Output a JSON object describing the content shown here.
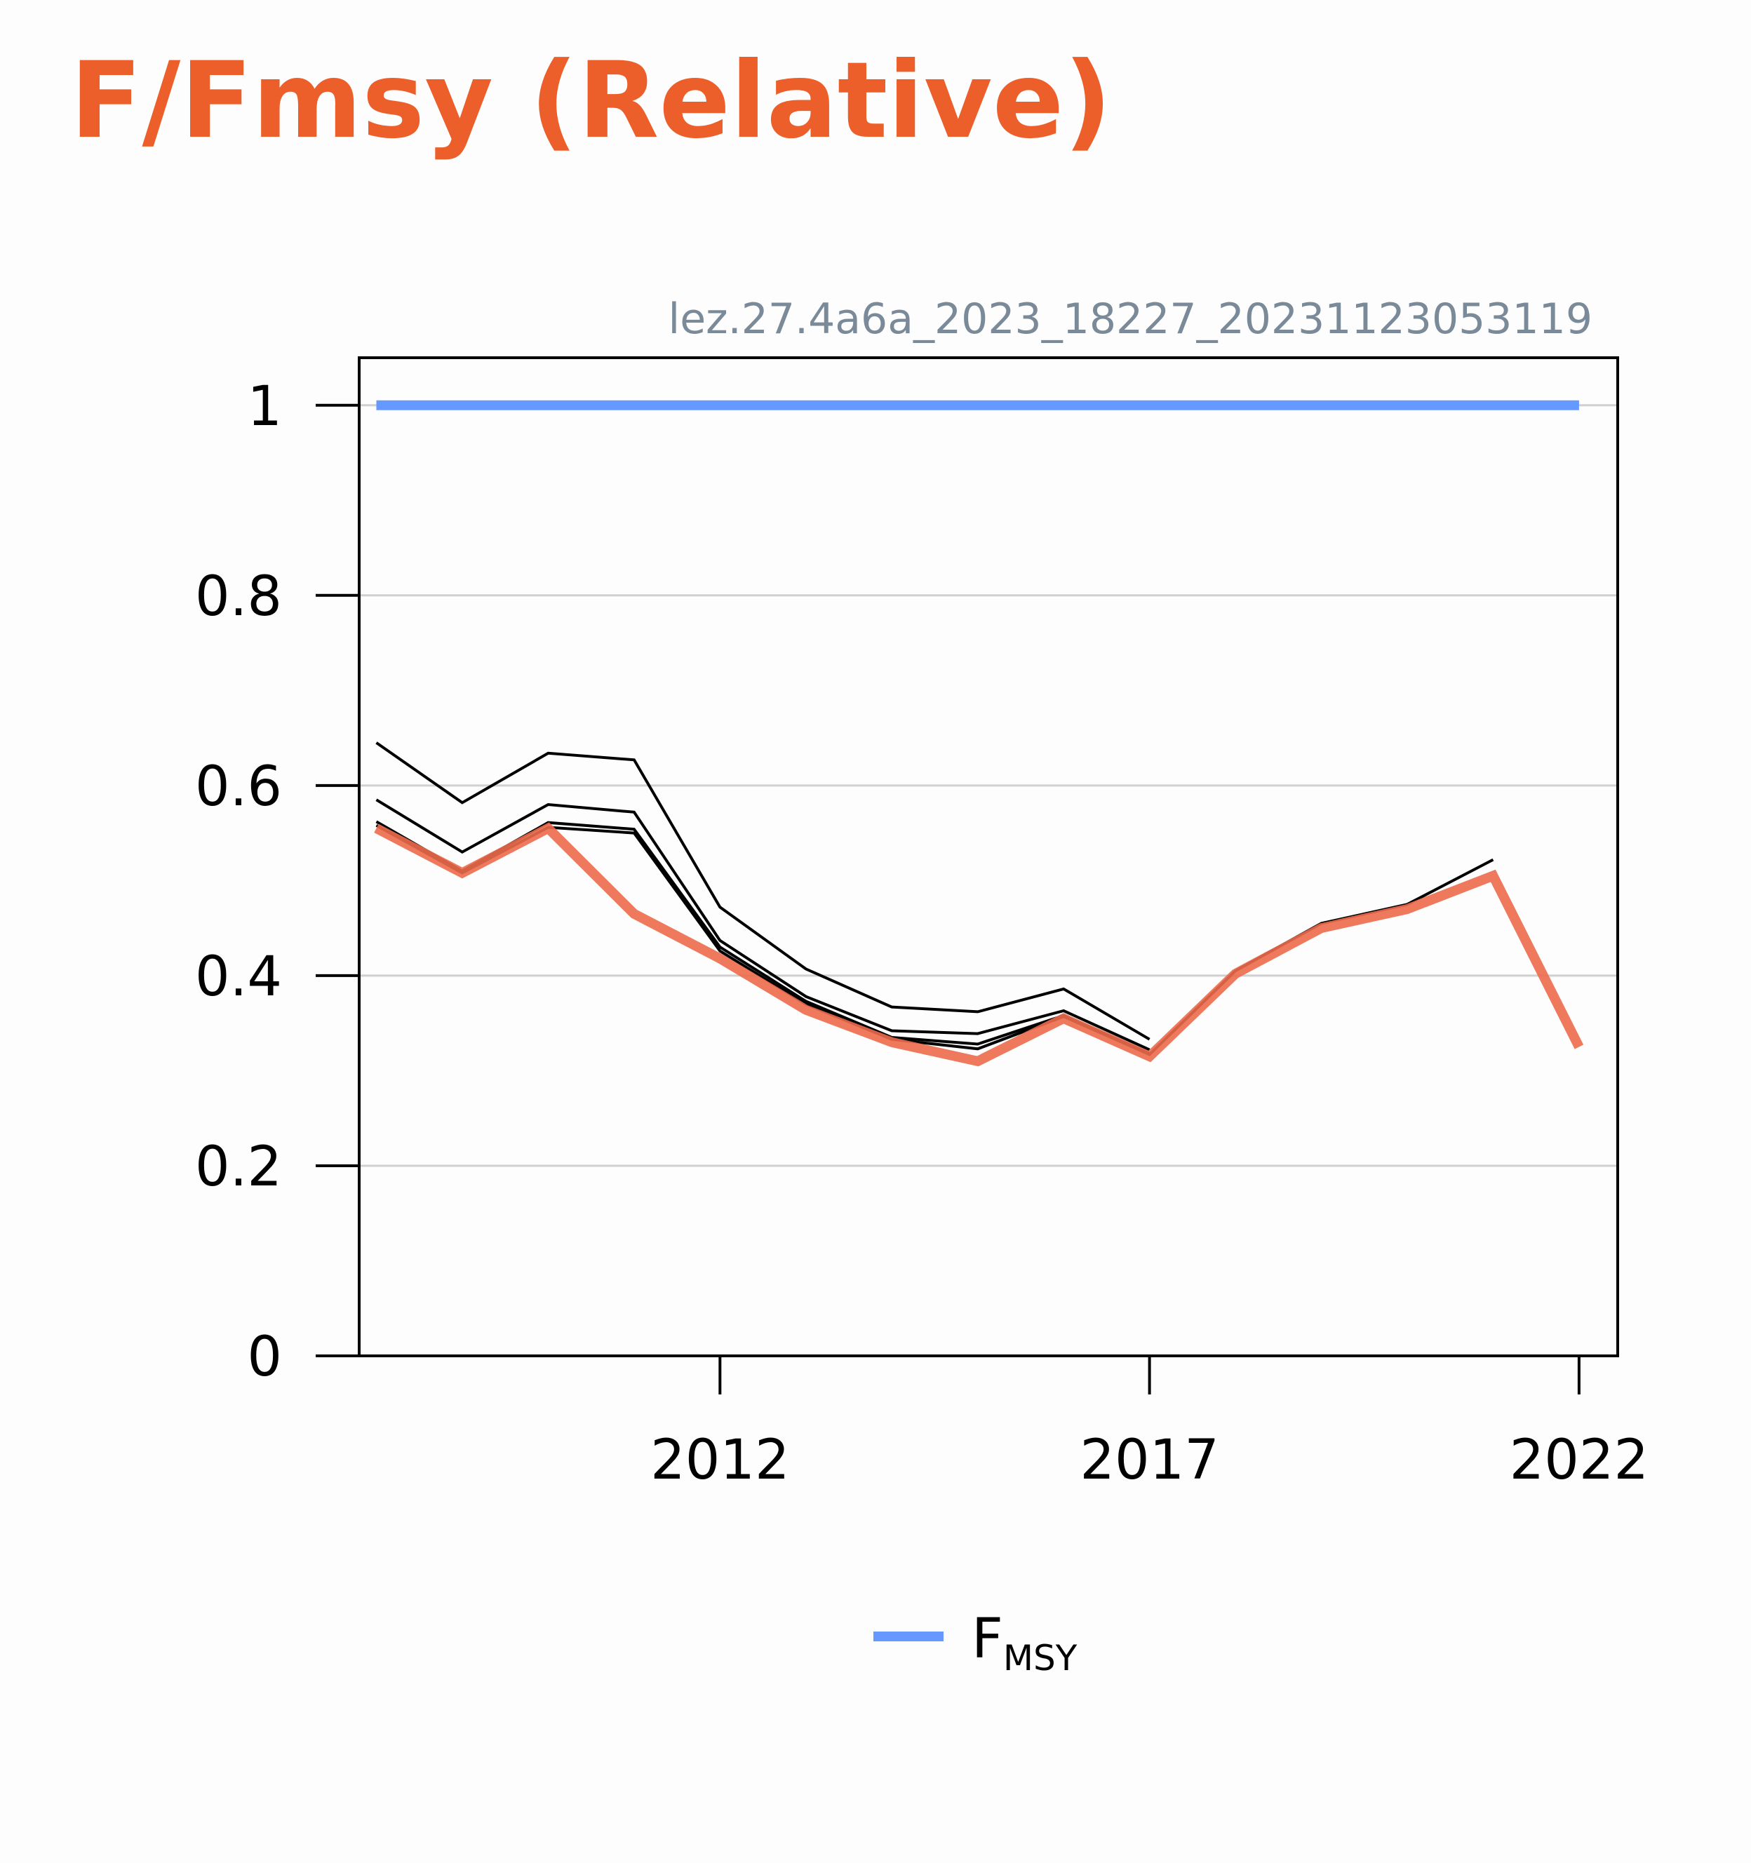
{
  "chart_data": {
    "type": "line",
    "title": "F/Fmsy (Relative)",
    "subtitle": "lez.27.4a6a_2023_18227_20231123053119",
    "xlabel": "",
    "ylabel": "",
    "xlim": [
      2007.8,
      2022.45
    ],
    "ylim": [
      0,
      1.05
    ],
    "x_ticks": [
      2012,
      2017,
      2022
    ],
    "y_ticks": [
      0,
      0.2,
      0.4,
      0.6,
      0.8,
      1
    ],
    "y_tick_labels": [
      "0",
      "0.2",
      "0.4",
      "0.6",
      "0.8",
      "1"
    ],
    "grid": "horizontal",
    "legend_position": "bottom-center",
    "series": [
      {
        "name": "FMSY",
        "legend_main": "F",
        "legend_sub": "MSY",
        "role": "reference",
        "color": "#6699ff",
        "x": [
          2008,
          2022
        ],
        "y": [
          1.0,
          1.0
        ]
      },
      {
        "role": "retrospective",
        "color": "#000000",
        "x": [
          2008,
          2009,
          2010,
          2011,
          2012,
          2013,
          2014,
          2015,
          2016,
          2017
        ],
        "y": [
          0.645,
          0.582,
          0.634,
          0.627,
          0.472,
          0.407,
          0.367,
          0.362,
          0.386,
          0.333
        ]
      },
      {
        "role": "retrospective",
        "color": "#000000",
        "x": [
          2008,
          2009,
          2010,
          2011,
          2012,
          2013,
          2014,
          2015,
          2016,
          2017
        ],
        "y": [
          0.585,
          0.53,
          0.58,
          0.572,
          0.437,
          0.378,
          0.342,
          0.339,
          0.363,
          0.322
        ]
      },
      {
        "role": "retrospective",
        "color": "#000000",
        "x": [
          2008,
          2009,
          2010,
          2011,
          2012,
          2013,
          2014,
          2015,
          2016,
          2017
        ],
        "y": [
          0.562,
          0.51,
          0.561,
          0.554,
          0.43,
          0.373,
          0.335,
          0.328,
          0.358,
          0.318
        ]
      },
      {
        "role": "retrospective",
        "color": "#000000",
        "x": [
          2008,
          2009,
          2010,
          2011,
          2012,
          2013,
          2014,
          2015,
          2016,
          2017,
          2018,
          2019,
          2020,
          2021
        ],
        "y": [
          0.558,
          0.508,
          0.556,
          0.55,
          0.426,
          0.37,
          0.333,
          0.323,
          0.357,
          0.317,
          0.405,
          0.455,
          0.475,
          0.522
        ]
      },
      {
        "role": "current",
        "color": "#ec6a4b",
        "x": [
          2008,
          2009,
          2010,
          2011,
          2012,
          2013,
          2014,
          2015,
          2016,
          2017,
          2018,
          2019,
          2020,
          2021,
          2022
        ],
        "y": [
          0.555,
          0.508,
          0.555,
          0.465,
          0.418,
          0.364,
          0.33,
          0.31,
          0.355,
          0.315,
          0.402,
          0.45,
          0.47,
          0.505,
          0.325
        ]
      }
    ]
  }
}
